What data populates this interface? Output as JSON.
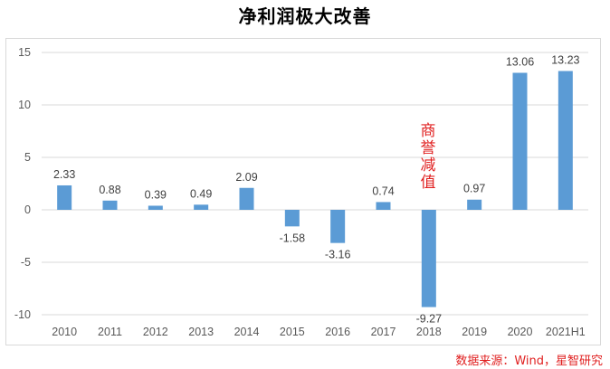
{
  "chart_data": {
    "type": "bar",
    "title": "净利润极大改善",
    "categories": [
      "2010",
      "2011",
      "2012",
      "2013",
      "2014",
      "2015",
      "2016",
      "2017",
      "2018",
      "2019",
      "2020",
      "2021H1"
    ],
    "values": [
      2.33,
      0.88,
      0.39,
      0.49,
      2.09,
      -1.58,
      -3.16,
      0.74,
      -9.27,
      0.97,
      13.06,
      13.23
    ],
    "data_labels": [
      "2.33",
      "0.88",
      "0.39",
      "0.49",
      "2.09",
      "-1.58",
      "-3.16",
      "0.74",
      "-9.27",
      "0.97",
      "13.06",
      "13.23"
    ],
    "yticks": [
      "15",
      "10",
      "5",
      "0",
      "-5",
      "-10"
    ],
    "ylim": [
      -10,
      15
    ],
    "xlabel": "",
    "ylabel": "",
    "grid": true,
    "bar_color": "#5b9bd5",
    "grid_color": "#d9d9d9",
    "annotation": {
      "text": "商誉减值",
      "category": "2018",
      "color": "#e02020"
    }
  },
  "source": {
    "text": "数据来源：Wind，星智研究",
    "color": "#e02020"
  }
}
